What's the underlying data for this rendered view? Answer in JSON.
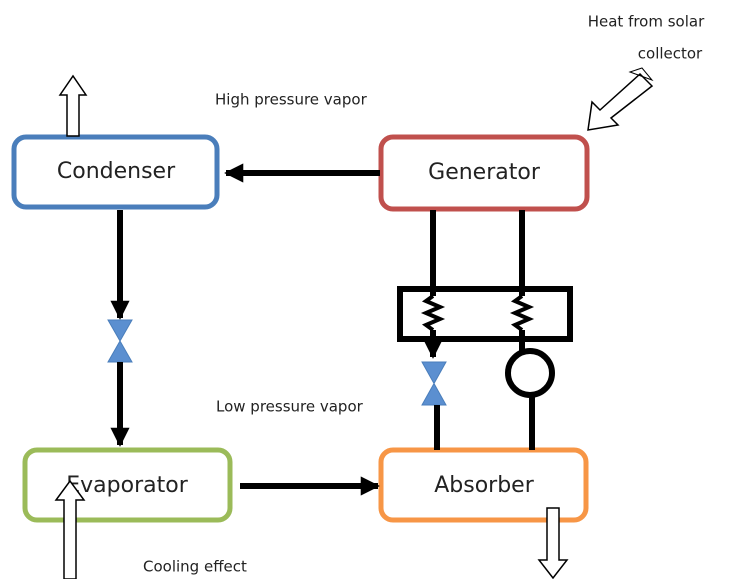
{
  "nodes": [
    {
      "label": "Condenser"
    },
    {
      "label": "Generator"
    },
    {
      "label": "Evaporator"
    },
    {
      "label": "Absorber"
    }
  ],
  "annotations": {
    "heat_source": [
      "Heat from solar",
      "collector"
    ],
    "high_pressure": "High pressure vapor",
    "low_pressure": "Low pressure vapor",
    "cooling": "Cooling effect"
  }
}
